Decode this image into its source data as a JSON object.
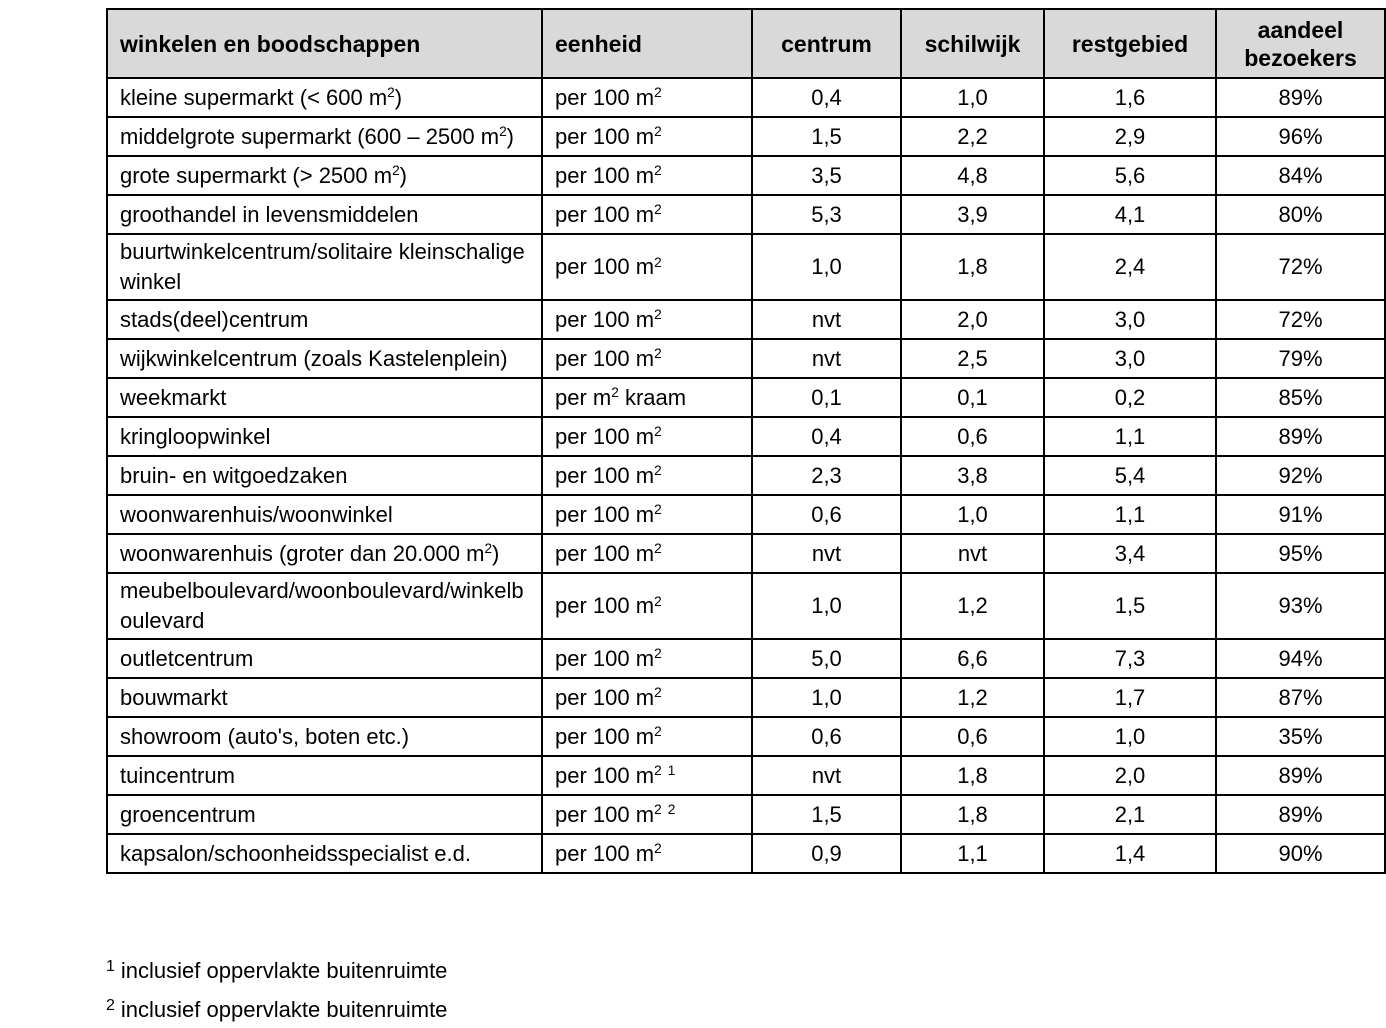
{
  "page": {
    "background_color": "#ffffff",
    "text_color": "#000000"
  },
  "table": {
    "header_bg_color": "#d9d9d9",
    "border_color": "#000000",
    "headers": [
      "winkelen en boodschappen",
      "eenheid",
      "centrum",
      "schilwijk",
      "restgebied",
      "aandeel bezoekers"
    ],
    "rows": [
      {
        "label": "kleine supermarkt (< 600 m²)",
        "eenheid": "per 100 m²",
        "centrum": "0,4",
        "schilwijk": "1,0",
        "restgebied": "1,6",
        "aandeel_bezoekers": "89%"
      },
      {
        "label": "middelgrote supermarkt (600 – 2500 m²)",
        "eenheid": "per 100 m²",
        "centrum": "1,5",
        "schilwijk": "2,2",
        "restgebied": "2,9",
        "aandeel_bezoekers": "96%"
      },
      {
        "label": "grote supermarkt (> 2500 m²)",
        "eenheid": "per 100 m²",
        "centrum": "3,5",
        "schilwijk": "4,8",
        "restgebied": "5,6",
        "aandeel_bezoekers": "84%"
      },
      {
        "label": "groothandel in levensmiddelen",
        "eenheid": "per 100 m²",
        "centrum": "5,3",
        "schilwijk": "3,9",
        "restgebied": "4,1",
        "aandeel_bezoekers": "80%"
      },
      {
        "label": "buurtwinkelcentrum/solitaire kleinschalige winkel",
        "eenheid": "per 100 m²",
        "centrum": "1,0",
        "schilwijk": "1,8",
        "restgebied": "2,4",
        "aandeel_bezoekers": "72%"
      },
      {
        "label": "stads(deel)centrum",
        "eenheid": "per 100 m²",
        "centrum": "nvt",
        "schilwijk": "2,0",
        "restgebied": "3,0",
        "aandeel_bezoekers": "72%"
      },
      {
        "label": "wijkwinkelcentrum (zoals Kastelenplein)",
        "eenheid": "per 100 m²",
        "centrum": "nvt",
        "schilwijk": "2,5",
        "restgebied": "3,0",
        "aandeel_bezoekers": "79%"
      },
      {
        "label": "weekmarkt",
        "eenheid": "per m² kraam",
        "centrum": "0,1",
        "schilwijk": "0,1",
        "restgebied": "0,2",
        "aandeel_bezoekers": "85%"
      },
      {
        "label": "kringloopwinkel",
        "eenheid": "per 100 m²",
        "centrum": "0,4",
        "schilwijk": "0,6",
        "restgebied": "1,1",
        "aandeel_bezoekers": "89%"
      },
      {
        "label": "bruin- en witgoedzaken",
        "eenheid": "per 100 m²",
        "centrum": "2,3",
        "schilwijk": "3,8",
        "restgebied": "5,4",
        "aandeel_bezoekers": "92%"
      },
      {
        "label": "woonwarenhuis/woonwinkel",
        "eenheid": "per 100 m²",
        "centrum": "0,6",
        "schilwijk": "1,0",
        "restgebied": "1,1",
        "aandeel_bezoekers": "91%"
      },
      {
        "label": "woonwarenhuis (groter dan 20.000 m²)",
        "eenheid": "per 100 m²",
        "centrum": "nvt",
        "schilwijk": "nvt",
        "restgebied": "3,4",
        "aandeel_bezoekers": "95%"
      },
      {
        "label": "meubelboulevard/woonboulevard/winkelboulevard",
        "eenheid": "per 100 m²",
        "centrum": "1,0",
        "schilwijk": "1,2",
        "restgebied": "1,5",
        "aandeel_bezoekers": "93%"
      },
      {
        "label": "outletcentrum",
        "eenheid": "per 100 m²",
        "centrum": "5,0",
        "schilwijk": "6,6",
        "restgebied": "7,3",
        "aandeel_bezoekers": "94%"
      },
      {
        "label": "bouwmarkt",
        "eenheid": "per 100 m²",
        "centrum": "1,0",
        "schilwijk": "1,2",
        "restgebied": "1,7",
        "aandeel_bezoekers": "87%"
      },
      {
        "label": "showroom (auto's, boten etc.)",
        "eenheid": "per 100 m²",
        "centrum": "0,6",
        "schilwijk": "0,6",
        "restgebied": "1,0",
        "aandeel_bezoekers": "35%"
      },
      {
        "label": "tuincentrum",
        "eenheid": "per 100 m² ¹",
        "centrum": "nvt",
        "schilwijk": "1,8",
        "restgebied": "2,0",
        "aandeel_bezoekers": "89%"
      },
      {
        "label": "groencentrum",
        "eenheid": "per 100 m² ²",
        "centrum": "1,5",
        "schilwijk": "1,8",
        "restgebied": "2,1",
        "aandeel_bezoekers": "89%"
      },
      {
        "label": "kapsalon/schoonheidsspecialist e.d.",
        "eenheid": "per 100 m²",
        "centrum": "0,9",
        "schilwijk": "1,1",
        "restgebied": "1,4",
        "aandeel_bezoekers": "90%"
      }
    ],
    "footnotes": [
      {
        "marker": "1",
        "text": "inclusief oppervlakte buitenruimte"
      },
      {
        "marker": "2",
        "text": "inclusief oppervlakte buitenruimte"
      }
    ]
  }
}
